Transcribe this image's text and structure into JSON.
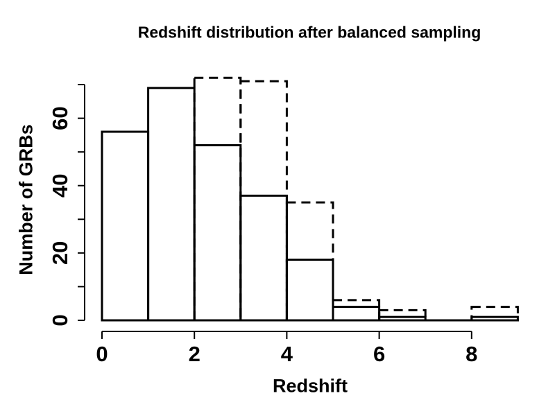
{
  "chart_data": {
    "type": "bar",
    "subtype": "histogram-overlay",
    "title": "Redshift distribution after balanced sampling",
    "xlabel": "Redshift",
    "ylabel": "Number of GRBs",
    "bin_edges": [
      0,
      1,
      2,
      3,
      4,
      5,
      6,
      7,
      8,
      9
    ],
    "series": [
      {
        "name": "solid-histogram",
        "line_style": "solid",
        "values": [
          56,
          69,
          52,
          37,
          18,
          4,
          1,
          0,
          1
        ]
      },
      {
        "name": "dashed-histogram",
        "line_style": "dashed",
        "values": [
          0,
          0,
          72,
          71,
          35,
          6,
          3,
          0,
          4
        ]
      }
    ],
    "xlim": [
      0,
      9
    ],
    "ylim": [
      0,
      70
    ],
    "x_ticks": [
      0,
      2,
      4,
      6,
      8
    ],
    "x_tick_labels": [
      "0",
      "2",
      "4",
      "6",
      "8"
    ],
    "y_ticks": [
      0,
      10,
      20,
      30,
      40,
      50,
      60,
      70
    ],
    "y_labeled_ticks": [
      0,
      20,
      40,
      60
    ],
    "y_tick_labels": [
      "0",
      "20",
      "40",
      "60"
    ],
    "grid": "off",
    "legend": "none",
    "colors": {
      "line": "#000000",
      "background": "#ffffff"
    }
  }
}
